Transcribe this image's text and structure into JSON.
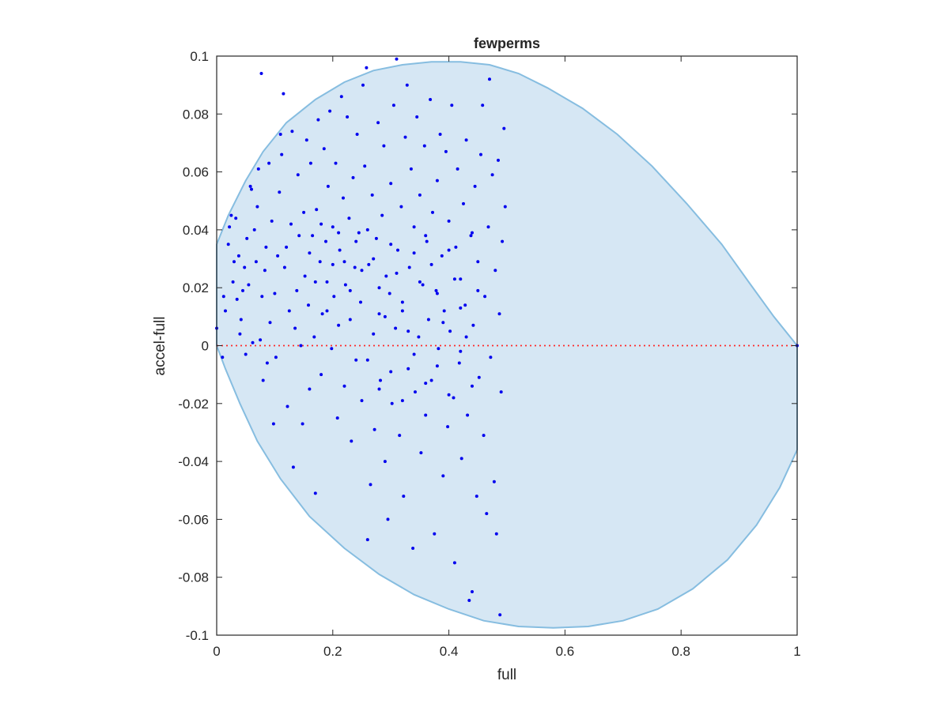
{
  "chart_data": {
    "type": "scatter",
    "title": "fewperms",
    "xlabel": "full",
    "ylabel": "accel-full",
    "xlim": [
      0,
      1
    ],
    "ylim": [
      -0.1,
      0.1
    ],
    "xticks": [
      "0",
      "0.2",
      "0.4",
      "0.6",
      "0.8",
      "1"
    ],
    "yticks": [
      "-0.1",
      "-0.08",
      "-0.06",
      "-0.04",
      "-0.02",
      "0",
      "0.02",
      "0.04",
      "0.06",
      "0.08",
      "0.1"
    ],
    "grid": false,
    "legend": "none",
    "colors": {
      "points": "#0000ee",
      "region_fill": "#d6e7f4",
      "region_edge": "#86bde0",
      "zero_line": "#ff2a2a",
      "axes": "#262626"
    },
    "reference_line": {
      "y": 0,
      "style": "dotted"
    },
    "shaded_region": {
      "description_free": true,
      "points": [
        [
          0.0,
          0.035
        ],
        [
          0.02,
          0.045
        ],
        [
          0.05,
          0.057
        ],
        [
          0.08,
          0.067
        ],
        [
          0.12,
          0.077
        ],
        [
          0.17,
          0.085
        ],
        [
          0.22,
          0.091
        ],
        [
          0.27,
          0.095
        ],
        [
          0.32,
          0.097
        ],
        [
          0.37,
          0.098
        ],
        [
          0.42,
          0.098
        ],
        [
          0.47,
          0.097
        ],
        [
          0.52,
          0.094
        ],
        [
          0.57,
          0.089
        ],
        [
          0.63,
          0.082
        ],
        [
          0.69,
          0.073
        ],
        [
          0.75,
          0.062
        ],
        [
          0.81,
          0.049
        ],
        [
          0.87,
          0.035
        ],
        [
          0.92,
          0.021
        ],
        [
          0.96,
          0.01
        ],
        [
          1.0,
          0.0
        ],
        [
          1.0,
          -0.036
        ],
        [
          0.97,
          -0.049
        ],
        [
          0.93,
          -0.062
        ],
        [
          0.88,
          -0.074
        ],
        [
          0.82,
          -0.084
        ],
        [
          0.76,
          -0.091
        ],
        [
          0.7,
          -0.095
        ],
        [
          0.64,
          -0.097
        ],
        [
          0.58,
          -0.0975
        ],
        [
          0.52,
          -0.097
        ],
        [
          0.46,
          -0.095
        ],
        [
          0.4,
          -0.091
        ],
        [
          0.34,
          -0.086
        ],
        [
          0.28,
          -0.079
        ],
        [
          0.22,
          -0.07
        ],
        [
          0.16,
          -0.059
        ],
        [
          0.11,
          -0.046
        ],
        [
          0.07,
          -0.033
        ],
        [
          0.04,
          -0.02
        ],
        [
          0.015,
          -0.008
        ],
        [
          0.0,
          0.0
        ]
      ]
    },
    "series": [
      {
        "points": [
          [
            0.0,
            0.006
          ],
          [
            0.01,
            -0.004
          ],
          [
            0.012,
            0.017
          ],
          [
            0.015,
            0.012
          ],
          [
            0.02,
            0.035
          ],
          [
            0.022,
            0.041
          ],
          [
            0.025,
            0.045
          ],
          [
            0.028,
            0.022
          ],
          [
            0.03,
            0.029
          ],
          [
            0.033,
            0.044
          ],
          [
            0.035,
            0.016
          ],
          [
            0.038,
            0.031
          ],
          [
            0.04,
            0.004
          ],
          [
            0.042,
            0.009
          ],
          [
            0.045,
            0.019
          ],
          [
            0.048,
            0.027
          ],
          [
            0.05,
            -0.003
          ],
          [
            0.052,
            0.037
          ],
          [
            0.055,
            0.021
          ],
          [
            0.058,
            0.055
          ],
          [
            0.06,
            0.054
          ],
          [
            0.062,
            0.001
          ],
          [
            0.065,
            0.04
          ],
          [
            0.068,
            0.029
          ],
          [
            0.07,
            0.048
          ],
          [
            0.072,
            0.061
          ],
          [
            0.075,
            0.002
          ],
          [
            0.077,
            0.094
          ],
          [
            0.078,
            0.017
          ],
          [
            0.08,
            -0.012
          ],
          [
            0.083,
            0.026
          ],
          [
            0.085,
            0.034
          ],
          [
            0.087,
            -0.006
          ],
          [
            0.09,
            0.063
          ],
          [
            0.092,
            0.008
          ],
          [
            0.095,
            0.043
          ],
          [
            0.098,
            -0.027
          ],
          [
            0.1,
            0.018
          ],
          [
            0.102,
            -0.004
          ],
          [
            0.105,
            0.031
          ],
          [
            0.108,
            0.053
          ],
          [
            0.11,
            0.073
          ],
          [
            0.112,
            0.066
          ],
          [
            0.115,
            0.087
          ],
          [
            0.117,
            0.027
          ],
          [
            0.12,
            0.034
          ],
          [
            0.122,
            -0.021
          ],
          [
            0.125,
            0.012
          ],
          [
            0.128,
            0.042
          ],
          [
            0.13,
            0.074
          ],
          [
            0.132,
            -0.042
          ],
          [
            0.135,
            0.006
          ],
          [
            0.138,
            0.019
          ],
          [
            0.14,
            0.059
          ],
          [
            0.142,
            0.038
          ],
          [
            0.145,
            0.0
          ],
          [
            0.148,
            -0.027
          ],
          [
            0.15,
            0.046
          ],
          [
            0.152,
            0.024
          ],
          [
            0.155,
            0.071
          ],
          [
            0.158,
            0.014
          ],
          [
            0.16,
            -0.015
          ],
          [
            0.162,
            0.063
          ],
          [
            0.165,
            0.038
          ],
          [
            0.168,
            0.003
          ],
          [
            0.17,
            -0.051
          ],
          [
            0.172,
            0.047
          ],
          [
            0.175,
            0.078
          ],
          [
            0.178,
            0.029
          ],
          [
            0.18,
            -0.01
          ],
          [
            0.182,
            0.011
          ],
          [
            0.185,
            0.068
          ],
          [
            0.188,
            0.036
          ],
          [
            0.19,
            0.022
          ],
          [
            0.192,
            0.055
          ],
          [
            0.195,
            0.081
          ],
          [
            0.198,
            -0.001
          ],
          [
            0.2,
            0.041
          ],
          [
            0.202,
            0.017
          ],
          [
            0.205,
            0.063
          ],
          [
            0.208,
            -0.025
          ],
          [
            0.21,
            0.007
          ],
          [
            0.212,
            0.033
          ],
          [
            0.215,
            0.086
          ],
          [
            0.218,
            0.051
          ],
          [
            0.22,
            -0.014
          ],
          [
            0.222,
            0.021
          ],
          [
            0.225,
            0.079
          ],
          [
            0.228,
            0.044
          ],
          [
            0.23,
            0.009
          ],
          [
            0.232,
            -0.033
          ],
          [
            0.235,
            0.058
          ],
          [
            0.238,
            0.027
          ],
          [
            0.24,
            -0.005
          ],
          [
            0.242,
            0.073
          ],
          [
            0.245,
            0.039
          ],
          [
            0.248,
            0.015
          ],
          [
            0.25,
            -0.019
          ],
          [
            0.252,
            0.09
          ],
          [
            0.255,
            0.062
          ],
          [
            0.258,
            0.096
          ],
          [
            0.26,
            -0.067
          ],
          [
            0.262,
            0.028
          ],
          [
            0.265,
            -0.048
          ],
          [
            0.268,
            0.052
          ],
          [
            0.27,
            0.004
          ],
          [
            0.272,
            -0.029
          ],
          [
            0.275,
            0.037
          ],
          [
            0.278,
            0.077
          ],
          [
            0.28,
            0.011
          ],
          [
            0.282,
            -0.012
          ],
          [
            0.285,
            0.045
          ],
          [
            0.288,
            0.069
          ],
          [
            0.29,
            -0.04
          ],
          [
            0.292,
            0.024
          ],
          [
            0.295,
            -0.06
          ],
          [
            0.298,
            0.018
          ],
          [
            0.3,
            0.056
          ],
          [
            0.302,
            -0.02
          ],
          [
            0.305,
            0.083
          ],
          [
            0.308,
            0.006
          ],
          [
            0.31,
            0.099
          ],
          [
            0.312,
            0.033
          ],
          [
            0.315,
            -0.031
          ],
          [
            0.318,
            0.048
          ],
          [
            0.32,
            0.012
          ],
          [
            0.322,
            -0.052
          ],
          [
            0.325,
            0.072
          ],
          [
            0.328,
            0.09
          ],
          [
            0.33,
            -0.008
          ],
          [
            0.332,
            0.027
          ],
          [
            0.335,
            0.061
          ],
          [
            0.338,
            -0.07
          ],
          [
            0.34,
            0.041
          ],
          [
            0.342,
            -0.016
          ],
          [
            0.345,
            0.079
          ],
          [
            0.348,
            0.003
          ],
          [
            0.35,
            0.052
          ],
          [
            0.352,
            -0.037
          ],
          [
            0.355,
            0.021
          ],
          [
            0.358,
            0.069
          ],
          [
            0.36,
            -0.024
          ],
          [
            0.362,
            0.036
          ],
          [
            0.365,
            0.009
          ],
          [
            0.368,
            0.085
          ],
          [
            0.37,
            -0.012
          ],
          [
            0.372,
            0.046
          ],
          [
            0.375,
            -0.065
          ],
          [
            0.378,
            0.019
          ],
          [
            0.38,
            0.057
          ],
          [
            0.382,
            -0.001
          ],
          [
            0.385,
            0.073
          ],
          [
            0.388,
            0.031
          ],
          [
            0.39,
            -0.045
          ],
          [
            0.392,
            0.012
          ],
          [
            0.395,
            0.067
          ],
          [
            0.398,
            -0.028
          ],
          [
            0.4,
            0.043
          ],
          [
            0.402,
            0.005
          ],
          [
            0.405,
            0.083
          ],
          [
            0.408,
            -0.018
          ],
          [
            0.41,
            -0.075
          ],
          [
            0.412,
            0.034
          ],
          [
            0.415,
            0.061
          ],
          [
            0.418,
            -0.006
          ],
          [
            0.42,
            0.023
          ],
          [
            0.422,
            -0.039
          ],
          [
            0.425,
            0.049
          ],
          [
            0.428,
            0.014
          ],
          [
            0.43,
            0.071
          ],
          [
            0.432,
            -0.024
          ],
          [
            0.435,
            -0.088
          ],
          [
            0.438,
            0.038
          ],
          [
            0.44,
            -0.085
          ],
          [
            0.442,
            0.007
          ],
          [
            0.445,
            0.055
          ],
          [
            0.448,
            -0.052
          ],
          [
            0.45,
            0.029
          ],
          [
            0.452,
            -0.011
          ],
          [
            0.455,
            0.066
          ],
          [
            0.458,
            0.083
          ],
          [
            0.46,
            -0.031
          ],
          [
            0.462,
            0.017
          ],
          [
            0.465,
            -0.058
          ],
          [
            0.468,
            0.041
          ],
          [
            0.47,
            0.092
          ],
          [
            0.472,
            -0.004
          ],
          [
            0.475,
            0.059
          ],
          [
            0.478,
            -0.047
          ],
          [
            0.48,
            0.026
          ],
          [
            0.482,
            -0.065
          ],
          [
            0.485,
            0.064
          ],
          [
            0.487,
            0.011
          ],
          [
            0.488,
            -0.093
          ],
          [
            0.49,
            -0.016
          ],
          [
            0.492,
            0.036
          ],
          [
            0.495,
            0.075
          ],
          [
            0.497,
            0.048
          ],
          [
            0.26,
            0.04
          ],
          [
            0.27,
            0.03
          ],
          [
            0.28,
            0.02
          ],
          [
            0.29,
            0.01
          ],
          [
            0.3,
            0.035
          ],
          [
            0.31,
            0.025
          ],
          [
            0.32,
            0.015
          ],
          [
            0.33,
            0.005
          ],
          [
            0.34,
            0.032
          ],
          [
            0.35,
            0.022
          ],
          [
            0.36,
            0.038
          ],
          [
            0.37,
            0.028
          ],
          [
            0.38,
            0.018
          ],
          [
            0.39,
            0.008
          ],
          [
            0.4,
            0.033
          ],
          [
            0.41,
            0.023
          ],
          [
            0.42,
            0.013
          ],
          [
            0.43,
            0.003
          ],
          [
            0.44,
            0.039
          ],
          [
            0.45,
            0.019
          ],
          [
            0.21,
            0.039
          ],
          [
            0.22,
            0.029
          ],
          [
            0.23,
            0.019
          ],
          [
            0.24,
            0.036
          ],
          [
            0.25,
            0.026
          ],
          [
            0.16,
            0.032
          ],
          [
            0.17,
            0.022
          ],
          [
            0.18,
            0.042
          ],
          [
            0.19,
            0.012
          ],
          [
            0.2,
            0.028
          ],
          [
            0.26,
            -0.005
          ],
          [
            0.28,
            -0.015
          ],
          [
            0.3,
            -0.009
          ],
          [
            0.32,
            -0.019
          ],
          [
            0.34,
            -0.003
          ],
          [
            0.36,
            -0.013
          ],
          [
            0.38,
            -0.007
          ],
          [
            0.4,
            -0.017
          ],
          [
            0.42,
            -0.002
          ],
          [
            0.44,
            -0.014
          ],
          [
            1.0,
            0.0
          ]
        ]
      }
    ]
  }
}
